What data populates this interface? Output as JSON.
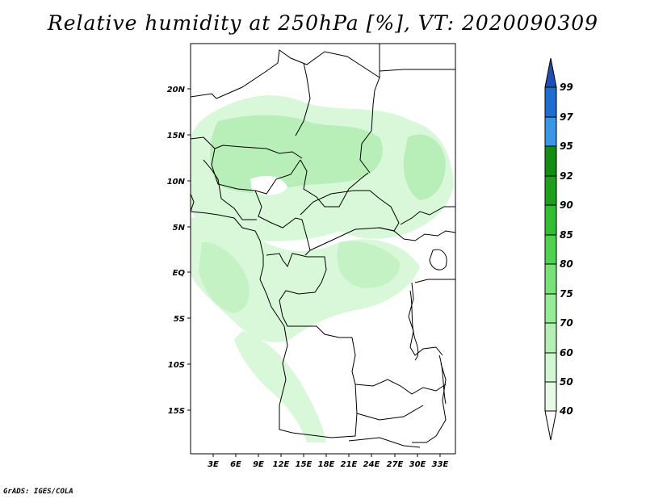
{
  "title": "Relative humidity at 250hPa [%], VT: 2020090309",
  "credit": "GrADS: IGES/COLA",
  "map": {
    "lat_labels": [
      "20N",
      "15N",
      "10N",
      "5N",
      "EQ",
      "5S",
      "10S",
      "15S"
    ],
    "lon_labels": [
      "3E",
      "6E",
      "9E",
      "12E",
      "15E",
      "18E",
      "21E",
      "24E",
      "27E",
      "30E",
      "33E"
    ]
  },
  "colorbar": {
    "levels": [
      "40",
      "50",
      "60",
      "70",
      "75",
      "80",
      "85",
      "90",
      "92",
      "95",
      "97",
      "99"
    ],
    "colors": [
      "#ffffff",
      "#e6fae6",
      "#d2f5d2",
      "#b4f0b4",
      "#96eb96",
      "#78e178",
      "#50d250",
      "#32be32",
      "#1ea01e",
      "#148c14",
      "#3c96e6",
      "#1e6ed2",
      "#1e50b4"
    ]
  },
  "colors": {
    "land_outline": "#000000",
    "frame": "#000000"
  }
}
